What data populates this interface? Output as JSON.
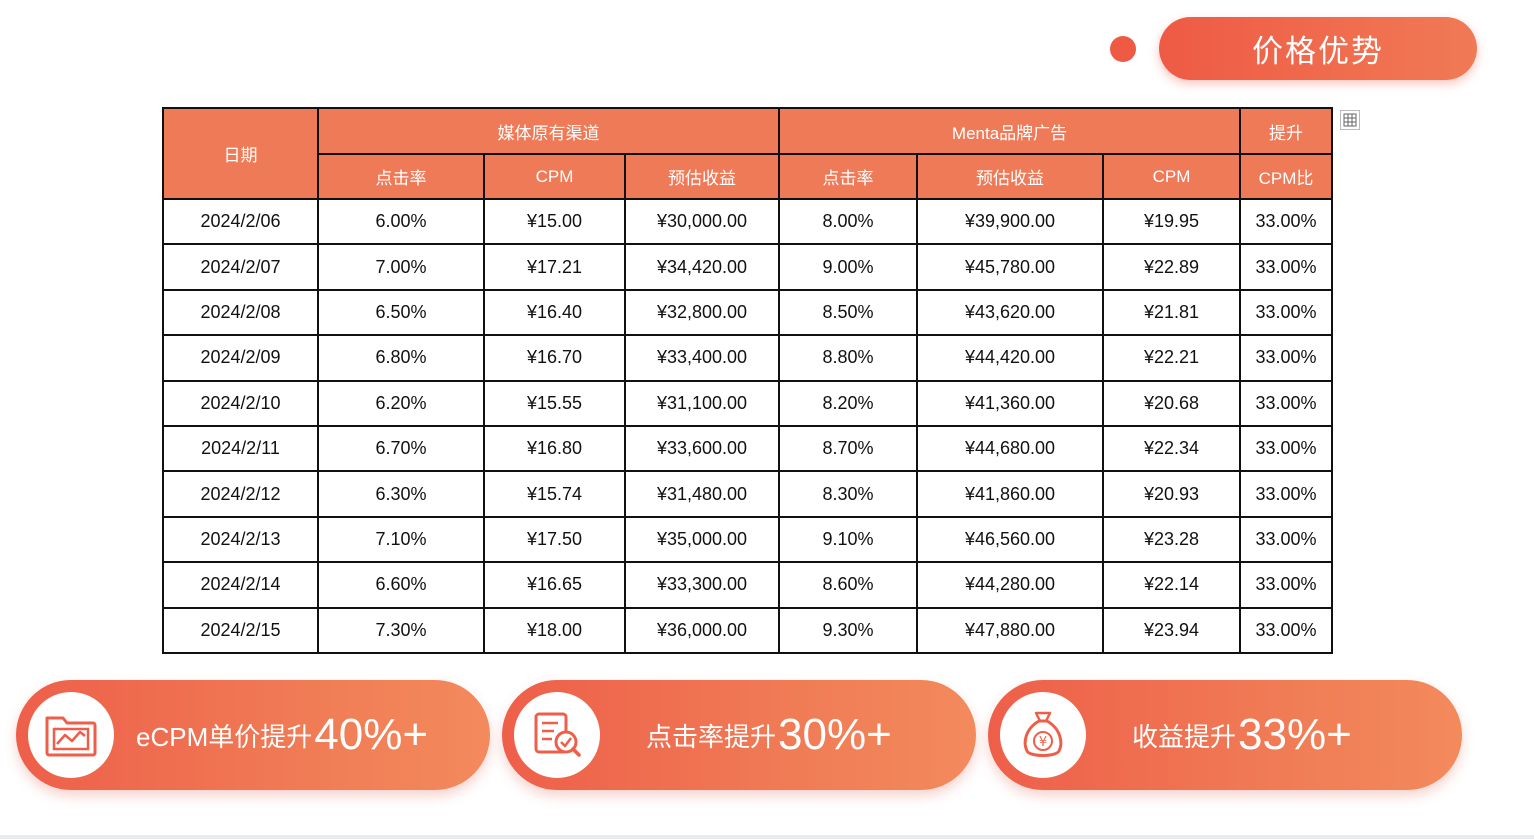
{
  "title": "价格优势",
  "table": {
    "date_header": "日期",
    "group_media": "媒体原有渠道",
    "group_menta": "Menta品牌广告",
    "group_lift": "提升",
    "sub_headers": [
      "点击率",
      "CPM",
      "预估收益",
      "点击率",
      "预估收益",
      "CPM",
      "CPM比"
    ],
    "rows": [
      [
        "2024/2/06",
        "6.00%",
        "¥15.00",
        "¥30,000.00",
        "8.00%",
        "¥39,900.00",
        "¥19.95",
        "33.00%"
      ],
      [
        "2024/2/07",
        "7.00%",
        "¥17.21",
        "¥34,420.00",
        "9.00%",
        "¥45,780.00",
        "¥22.89",
        "33.00%"
      ],
      [
        "2024/2/08",
        "6.50%",
        "¥16.40",
        "¥32,800.00",
        "8.50%",
        "¥43,620.00",
        "¥21.81",
        "33.00%"
      ],
      [
        "2024/2/09",
        "6.80%",
        "¥16.70",
        "¥33,400.00",
        "8.80%",
        "¥44,420.00",
        "¥22.21",
        "33.00%"
      ],
      [
        "2024/2/10",
        "6.20%",
        "¥15.55",
        "¥31,100.00",
        "8.20%",
        "¥41,360.00",
        "¥20.68",
        "33.00%"
      ],
      [
        "2024/2/11",
        "6.70%",
        "¥16.80",
        "¥33,600.00",
        "8.70%",
        "¥44,680.00",
        "¥22.34",
        "33.00%"
      ],
      [
        "2024/2/12",
        "6.30%",
        "¥15.74",
        "¥31,480.00",
        "8.30%",
        "¥41,860.00",
        "¥20.93",
        "33.00%"
      ],
      [
        "2024/2/13",
        "7.10%",
        "¥17.50",
        "¥35,000.00",
        "9.10%",
        "¥46,560.00",
        "¥23.28",
        "33.00%"
      ],
      [
        "2024/2/14",
        "6.60%",
        "¥16.65",
        "¥33,300.00",
        "8.60%",
        "¥44,280.00",
        "¥22.14",
        "33.00%"
      ],
      [
        "2024/2/15",
        "7.30%",
        "¥18.00",
        "¥36,000.00",
        "9.30%",
        "¥47,880.00",
        "¥23.94",
        "33.00%"
      ]
    ]
  },
  "badges": [
    {
      "text": "eCPM单价提升",
      "value": "40%+",
      "icon": "chart-folder-icon"
    },
    {
      "text": "点击率提升",
      "value": "30%+",
      "icon": "document-magnifier-icon"
    },
    {
      "text": "收益提升",
      "value": "33%+",
      "icon": "money-bag-icon"
    }
  ],
  "colors": {
    "accent": "#ef5a45",
    "header": "#ef7a57"
  }
}
